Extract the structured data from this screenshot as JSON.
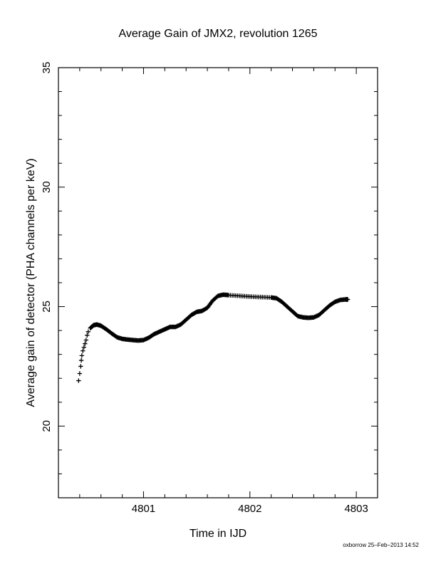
{
  "chart_data": {
    "type": "scatter",
    "title": "Average Gain of JMX2, revolution 1265",
    "xlabel": "Time in IJD",
    "ylabel": "Average gain of detector (PHA channels per keV)",
    "xlim": [
      4800.2,
      4803.2
    ],
    "ylim": [
      17,
      35
    ],
    "x_ticks": [
      "4801",
      "4802",
      "4803"
    ],
    "y_ticks": [
      "20",
      "25",
      "30",
      "35"
    ],
    "marker": "plus",
    "grid": false,
    "series": [
      {
        "points": [
          [
            4800.39,
            21.9
          ],
          [
            4800.4,
            22.2
          ],
          [
            4800.41,
            22.5
          ],
          [
            4800.415,
            22.75
          ],
          [
            4800.42,
            22.95
          ],
          [
            4800.43,
            23.15
          ],
          [
            4800.44,
            23.3
          ],
          [
            4800.45,
            23.45
          ],
          [
            4800.46,
            23.6
          ],
          [
            4800.47,
            23.8
          ],
          [
            4800.48,
            23.95
          ],
          [
            4800.5,
            24.1
          ],
          [
            4800.53,
            24.22
          ],
          [
            4800.56,
            24.25
          ],
          [
            4800.6,
            24.2
          ],
          [
            4800.65,
            24.05
          ],
          [
            4800.7,
            23.88
          ],
          [
            4800.75,
            23.72
          ],
          [
            4800.8,
            23.65
          ],
          [
            4800.85,
            23.62
          ],
          [
            4800.9,
            23.6
          ],
          [
            4800.95,
            23.58
          ],
          [
            4801.0,
            23.6
          ],
          [
            4801.05,
            23.7
          ],
          [
            4801.1,
            23.85
          ],
          [
            4801.15,
            23.95
          ],
          [
            4801.2,
            24.05
          ],
          [
            4801.25,
            24.15
          ],
          [
            4801.3,
            24.15
          ],
          [
            4801.35,
            24.25
          ],
          [
            4801.4,
            24.45
          ],
          [
            4801.45,
            24.65
          ],
          [
            4801.5,
            24.78
          ],
          [
            4801.55,
            24.82
          ],
          [
            4801.6,
            24.95
          ],
          [
            4801.65,
            25.25
          ],
          [
            4801.7,
            25.45
          ],
          [
            4801.75,
            25.5
          ],
          [
            4801.8,
            25.48
          ],
          [
            4801.9,
            25.45
          ],
          [
            4802.0,
            25.42
          ],
          [
            4802.1,
            25.4
          ],
          [
            4802.2,
            25.38
          ],
          [
            4802.25,
            25.35
          ],
          [
            4802.3,
            25.2
          ],
          [
            4802.35,
            25.0
          ],
          [
            4802.4,
            24.8
          ],
          [
            4802.45,
            24.6
          ],
          [
            4802.5,
            24.55
          ],
          [
            4802.55,
            24.53
          ],
          [
            4802.6,
            24.55
          ],
          [
            4802.65,
            24.65
          ],
          [
            4802.7,
            24.85
          ],
          [
            4802.75,
            25.05
          ],
          [
            4802.8,
            25.2
          ],
          [
            4802.85,
            25.28
          ],
          [
            4802.9,
            25.3
          ],
          [
            4802.92,
            25.3
          ]
        ]
      }
    ]
  },
  "footer": {
    "credit": "oxborrow 25–Feb–2013 14:52"
  }
}
